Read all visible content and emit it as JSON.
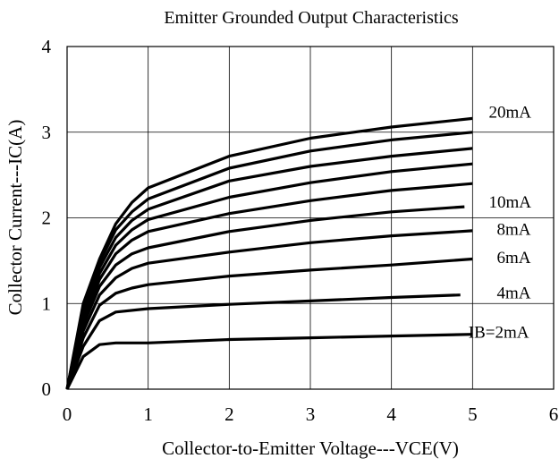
{
  "chart_data": {
    "type": "line",
    "title": "Emitter Grounded Output Characteristics",
    "xlabel": "Collector-to-Emitter Voltage---VCE(V)",
    "ylabel": "Collector Current---IC(A)",
    "xlim": [
      0,
      6
    ],
    "ylim": [
      0,
      4
    ],
    "x_ticks": [
      "0",
      "1",
      "2",
      "3",
      "4",
      "5",
      "6"
    ],
    "y_ticks": [
      "0",
      "1",
      "2",
      "3",
      "4"
    ],
    "grid": true,
    "series": [
      {
        "name": "IB=2mA",
        "points": [
          [
            0,
            0
          ],
          [
            0.2,
            0.38
          ],
          [
            0.4,
            0.52
          ],
          [
            0.6,
            0.54
          ],
          [
            1,
            0.54
          ],
          [
            2,
            0.58
          ],
          [
            3,
            0.6
          ],
          [
            4,
            0.62
          ],
          [
            5,
            0.64
          ]
        ]
      },
      {
        "name": "",
        "points": [
          [
            0,
            0
          ],
          [
            0.2,
            0.5
          ],
          [
            0.4,
            0.8
          ],
          [
            0.6,
            0.9
          ],
          [
            1,
            0.94
          ],
          [
            2,
            0.99
          ],
          [
            3,
            1.03
          ],
          [
            4,
            1.07
          ],
          [
            4.85,
            1.1
          ]
        ]
      },
      {
        "name": "4mA",
        "points": [
          [
            0,
            0
          ],
          [
            0.2,
            0.6
          ],
          [
            0.4,
            0.98
          ],
          [
            0.6,
            1.12
          ],
          [
            0.8,
            1.18
          ],
          [
            1,
            1.22
          ],
          [
            2,
            1.32
          ],
          [
            3,
            1.39
          ],
          [
            4,
            1.45
          ],
          [
            5,
            1.52
          ]
        ]
      },
      {
        "name": "6mA",
        "points": [
          [
            0,
            0
          ],
          [
            0.2,
            0.68
          ],
          [
            0.4,
            1.1
          ],
          [
            0.6,
            1.3
          ],
          [
            0.8,
            1.41
          ],
          [
            1,
            1.47
          ],
          [
            2,
            1.6
          ],
          [
            3,
            1.71
          ],
          [
            4,
            1.79
          ],
          [
            5,
            1.85
          ]
        ]
      },
      {
        "name": "8mA",
        "points": [
          [
            0,
            0
          ],
          [
            0.2,
            0.75
          ],
          [
            0.4,
            1.2
          ],
          [
            0.6,
            1.45
          ],
          [
            0.8,
            1.58
          ],
          [
            1,
            1.65
          ],
          [
            2,
            1.84
          ],
          [
            3,
            1.97
          ],
          [
            4,
            2.07
          ],
          [
            4.9,
            2.13
          ]
        ]
      },
      {
        "name": "10mA",
        "points": [
          [
            0,
            0
          ],
          [
            0.2,
            0.8
          ],
          [
            0.4,
            1.28
          ],
          [
            0.6,
            1.58
          ],
          [
            0.8,
            1.74
          ],
          [
            1,
            1.84
          ],
          [
            2,
            2.05
          ],
          [
            3,
            2.2
          ],
          [
            4,
            2.32
          ],
          [
            5,
            2.4
          ]
        ]
      },
      {
        "name": "",
        "points": [
          [
            0,
            0
          ],
          [
            0.2,
            0.85
          ],
          [
            0.4,
            1.35
          ],
          [
            0.6,
            1.68
          ],
          [
            0.8,
            1.86
          ],
          [
            1,
            1.98
          ],
          [
            2,
            2.24
          ],
          [
            3,
            2.41
          ],
          [
            4,
            2.54
          ],
          [
            5,
            2.63
          ]
        ]
      },
      {
        "name": "",
        "points": [
          [
            0,
            0
          ],
          [
            0.2,
            0.9
          ],
          [
            0.4,
            1.42
          ],
          [
            0.6,
            1.77
          ],
          [
            0.8,
            1.97
          ],
          [
            1,
            2.1
          ],
          [
            2,
            2.43
          ],
          [
            3,
            2.6
          ],
          [
            4,
            2.72
          ],
          [
            5,
            2.81
          ]
        ]
      },
      {
        "name": "",
        "points": [
          [
            0,
            0
          ],
          [
            0.2,
            0.95
          ],
          [
            0.4,
            1.48
          ],
          [
            0.6,
            1.86
          ],
          [
            0.8,
            2.07
          ],
          [
            1,
            2.22
          ],
          [
            2,
            2.58
          ],
          [
            3,
            2.78
          ],
          [
            4,
            2.91
          ],
          [
            5,
            3.0
          ]
        ]
      },
      {
        "name": "20mA",
        "points": [
          [
            0,
            0
          ],
          [
            0.2,
            1.0
          ],
          [
            0.4,
            1.52
          ],
          [
            0.6,
            1.93
          ],
          [
            0.8,
            2.18
          ],
          [
            1,
            2.35
          ],
          [
            2,
            2.72
          ],
          [
            3,
            2.93
          ],
          [
            4,
            3.06
          ],
          [
            5,
            3.16
          ]
        ]
      }
    ],
    "curve_labels": [
      {
        "text": "20mA",
        "x": 5.2,
        "y": 3.17
      },
      {
        "text": "10mA",
        "x": 5.2,
        "y": 2.12
      },
      {
        "text": "8mA",
        "x": 5.3,
        "y": 1.8
      },
      {
        "text": "6mA",
        "x": 5.3,
        "y": 1.47
      },
      {
        "text": "4mA",
        "x": 5.3,
        "y": 1.06
      },
      {
        "text": "IB=2mA",
        "x": 4.95,
        "y": 0.6
      }
    ]
  }
}
